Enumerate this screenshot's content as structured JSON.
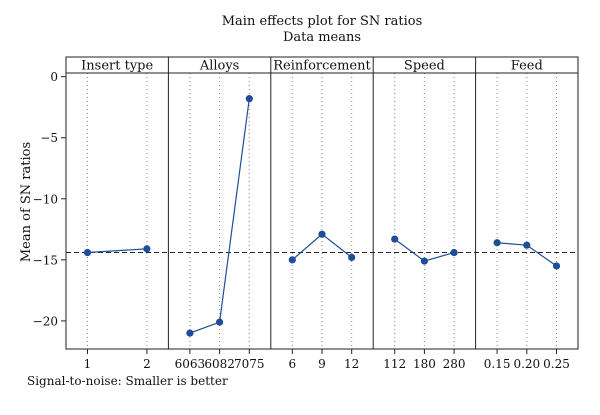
{
  "chart_data": {
    "type": "line",
    "title": "Main effects plot for SN ratios",
    "subtitle": "Data means",
    "ylabel": "Mean of SN ratios",
    "footnote": "Signal-to-noise: Smaller is better",
    "ylim": [
      -22.3,
      0.3
    ],
    "yticks": [
      0,
      -5,
      -10,
      -15,
      -20
    ],
    "ytick_labels": [
      "0",
      "−5",
      "−10",
      "−15",
      "−20"
    ],
    "overall_mean": -14.4,
    "grid": "dotted vertical",
    "series_color": "#1f4e99",
    "panels": [
      {
        "name": "Insert type",
        "categories": [
          "1",
          "2"
        ],
        "values": [
          -14.4,
          -14.1
        ]
      },
      {
        "name": "Alloys",
        "categories": [
          "6063",
          "6082",
          "7075"
        ],
        "values": [
          -21.0,
          -20.1,
          -1.8
        ]
      },
      {
        "name": "Reinforcement",
        "categories": [
          "6",
          "9",
          "12"
        ],
        "values": [
          -15.0,
          -12.9,
          -14.8
        ]
      },
      {
        "name": "Speed",
        "categories": [
          "112",
          "180",
          "280"
        ],
        "values": [
          -13.3,
          -15.1,
          -14.4
        ]
      },
      {
        "name": "Feed",
        "categories": [
          "0.15",
          "0.20",
          "0.25"
        ],
        "values": [
          -13.6,
          -13.8,
          -15.5
        ]
      }
    ]
  }
}
